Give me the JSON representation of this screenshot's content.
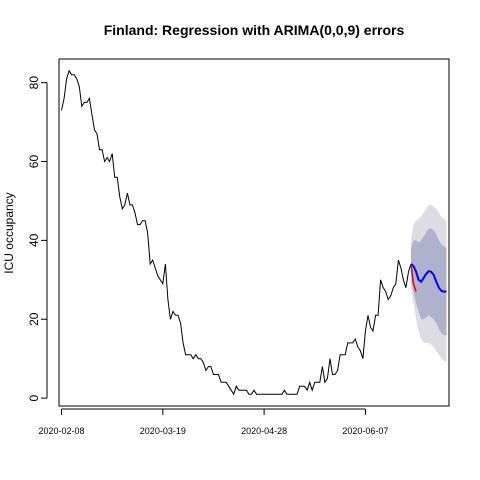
{
  "chart_data": {
    "type": "line",
    "title": "Finland: Regression with ARIMA(0,0,9) errors",
    "xlabel": "",
    "ylabel": "ICU occupancy",
    "x_tick_labels": [
      "2020-02-08",
      "2020-03-19",
      "2020-04-28",
      "2020-06-07"
    ],
    "y_ticks": [
      0,
      20,
      40,
      60,
      80
    ],
    "ylim": [
      -2,
      86
    ],
    "x_range_days": [
      -1,
      153
    ],
    "grid": false,
    "legend": "none",
    "colors": {
      "observed": "#000000",
      "forecast_mean": "#0000ff",
      "fitted": "#ff0000",
      "band_95": "#dcdce2",
      "band_80": "#aeb2cc"
    },
    "series": [
      {
        "role": "observed",
        "x": [
          0,
          1,
          2,
          3,
          4,
          5,
          6,
          7,
          8,
          9,
          10,
          11,
          12,
          13,
          14,
          15,
          16,
          17,
          18,
          19,
          20,
          21,
          22,
          23,
          24,
          25,
          26,
          27,
          28,
          29,
          30,
          31,
          32,
          33,
          34,
          35,
          36,
          37,
          38,
          39,
          40,
          41,
          42,
          43,
          44,
          45,
          46,
          47,
          48,
          49,
          50,
          51,
          52,
          53,
          54,
          55,
          56,
          57,
          58,
          59,
          60,
          61,
          62,
          63,
          64,
          65,
          66,
          67,
          68,
          69,
          70,
          71,
          72,
          73,
          74,
          75,
          76,
          77,
          78,
          79,
          80,
          81,
          82,
          83,
          84,
          85,
          86,
          87,
          88,
          89,
          90,
          91,
          92,
          93,
          94,
          95,
          96,
          97,
          98,
          99,
          100,
          101,
          102,
          103,
          104,
          105,
          106,
          107,
          108,
          109,
          110,
          111,
          112,
          113,
          114,
          115,
          116,
          117,
          118,
          119,
          120,
          121,
          122,
          123,
          124,
          125,
          126,
          127,
          128,
          129,
          130,
          131,
          132,
          133,
          134,
          135,
          136,
          137,
          138
        ],
        "y": [
          73,
          76,
          81,
          83,
          82,
          82,
          81,
          79,
          74,
          75,
          75,
          76,
          72,
          68,
          67,
          63,
          63,
          60,
          61,
          60,
          62,
          56,
          56,
          51,
          48,
          49,
          52,
          49,
          49,
          47,
          44,
          44,
          45,
          45,
          42,
          34,
          35,
          33,
          31,
          30,
          29,
          34,
          25,
          20,
          22,
          21,
          21,
          19,
          14,
          11,
          11,
          11,
          10,
          11,
          10,
          10,
          9,
          7,
          8,
          8,
          6,
          6,
          6,
          4,
          4,
          4,
          3,
          2,
          1,
          3,
          2,
          2,
          2,
          2,
          1,
          1,
          2,
          1,
          1,
          1,
          1,
          1,
          1,
          1,
          1,
          1,
          1,
          1,
          2,
          1,
          1,
          1,
          1,
          1,
          3,
          3,
          3,
          2,
          4,
          2,
          4,
          4,
          4,
          8,
          4,
          5,
          10,
          6,
          6,
          7,
          11,
          11,
          11,
          14,
          14,
          14,
          15,
          13,
          12,
          10,
          17,
          21,
          18,
          17,
          21,
          21,
          30,
          28,
          27,
          25,
          26,
          28,
          29,
          35,
          33,
          30,
          28,
          32,
          34
        ]
      },
      {
        "role": "fitted",
        "x": [
          138,
          139,
          140
        ],
        "y": [
          34,
          29,
          27
        ]
      },
      {
        "role": "forecast_mean",
        "x": [
          138,
          139,
          140,
          141,
          142,
          143,
          144,
          145,
          146,
          147,
          148,
          149,
          150,
          151,
          152
        ],
        "y": [
          34,
          33.5,
          32,
          30,
          29.5,
          30.5,
          31.5,
          32.2,
          32,
          31.2,
          29.5,
          28,
          27.2,
          27,
          27
        ]
      },
      {
        "role": "forecast_80",
        "x": [
          138,
          139,
          140,
          141,
          142,
          143,
          144,
          145,
          146,
          147,
          148,
          149,
          150,
          151,
          152
        ],
        "lower": [
          30,
          27,
          24,
          22,
          20,
          20,
          20.5,
          21,
          20.5,
          20,
          19,
          17.5,
          16.5,
          16,
          16
        ],
        "upper": [
          38,
          40,
          40,
          39.5,
          40,
          41,
          42,
          43,
          43,
          42.5,
          41.5,
          40,
          39,
          38.5,
          38
        ]
      },
      {
        "role": "forecast_95",
        "x": [
          138,
          139,
          140,
          141,
          142,
          143,
          144,
          145,
          146,
          147,
          148,
          149,
          150,
          151,
          152
        ],
        "lower": [
          28,
          24,
          20,
          17,
          15,
          14,
          14,
          14,
          13.5,
          13,
          12,
          11,
          10,
          9.5,
          9
        ],
        "upper": [
          40,
          44,
          45,
          45.5,
          46,
          47,
          48,
          49,
          49,
          48.5,
          48,
          47,
          46,
          45.5,
          45
        ]
      }
    ]
  }
}
